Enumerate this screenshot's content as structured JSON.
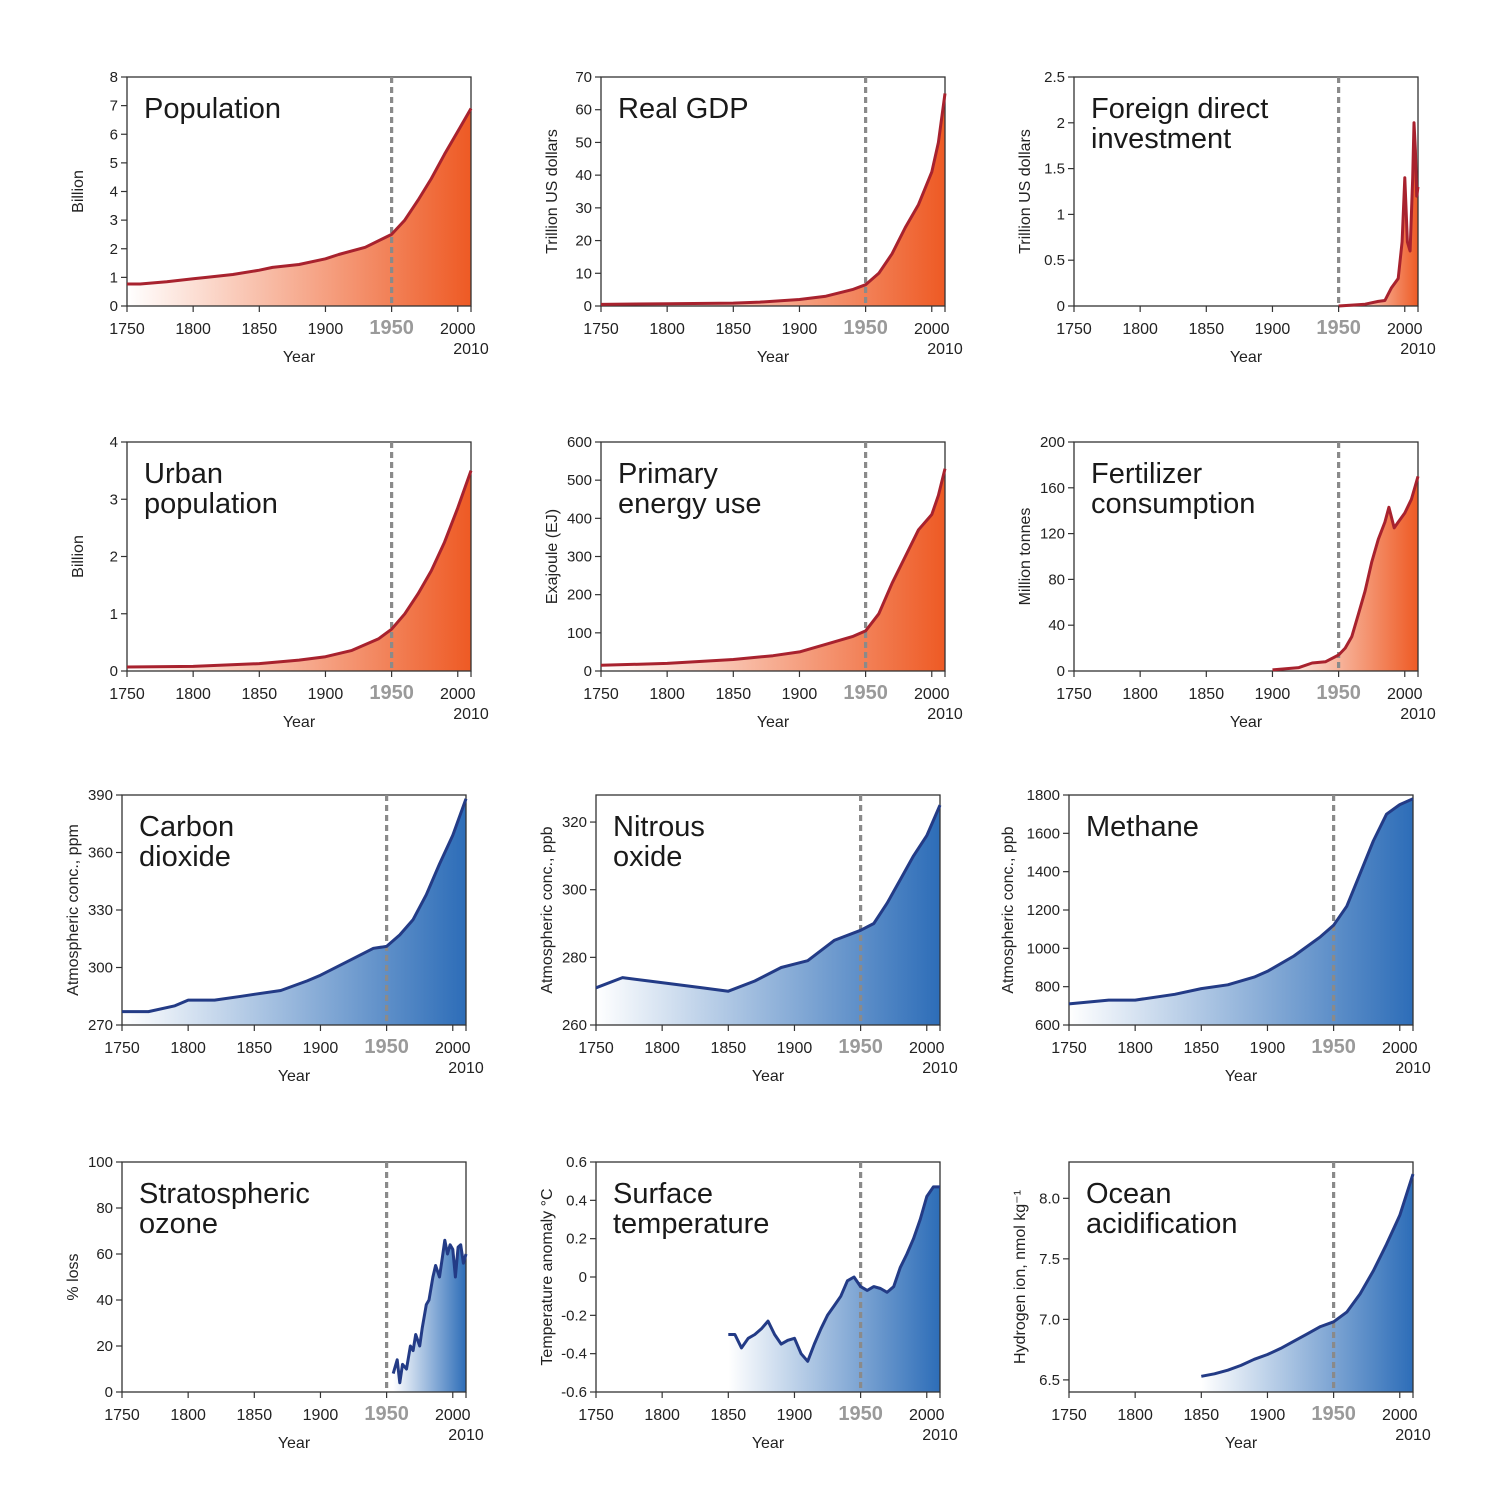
{
  "chart_data": [
    {
      "type": "area",
      "id": "population",
      "theme": "orange",
      "title_lines": [
        "Population"
      ],
      "ylabel": "Billion",
      "xlabel": "Year",
      "xlim": [
        1750,
        2010
      ],
      "ylim": [
        0,
        8
      ],
      "yticks": [
        "0",
        "1",
        "2",
        "3",
        "4",
        "5",
        "6",
        "7",
        "8"
      ],
      "xticks": [
        "1750",
        "1800",
        "1850",
        "1900",
        "1950",
        "2000"
      ],
      "x_end_label": "2010",
      "highlight_year": "1950",
      "x": [
        1750,
        1760,
        1780,
        1800,
        1810,
        1830,
        1850,
        1860,
        1880,
        1900,
        1910,
        1930,
        1950,
        1960,
        1970,
        1980,
        1990,
        2000,
        2010
      ],
      "y": [
        0.77,
        0.77,
        0.85,
        0.95,
        1.0,
        1.1,
        1.25,
        1.35,
        1.45,
        1.65,
        1.8,
        2.05,
        2.5,
        3.0,
        3.7,
        4.45,
        5.3,
        6.1,
        6.9
      ]
    },
    {
      "type": "area",
      "id": "real-gdp",
      "theme": "orange",
      "title_lines": [
        "Real GDP"
      ],
      "ylabel": "Trillion US dollars",
      "xlabel": "Year",
      "xlim": [
        1750,
        2010
      ],
      "ylim": [
        0,
        70
      ],
      "yticks": [
        "0",
        "10",
        "20",
        "30",
        "40",
        "50",
        "60",
        "70"
      ],
      "xticks": [
        "1750",
        "1800",
        "1850",
        "1900",
        "1950",
        "2000"
      ],
      "x_end_label": "2010",
      "highlight_year": "1950",
      "x": [
        1750,
        1800,
        1850,
        1870,
        1900,
        1920,
        1940,
        1950,
        1960,
        1970,
        1980,
        1990,
        2000,
        2005,
        2010
      ],
      "y": [
        0.5,
        0.7,
        0.9,
        1.2,
        2.0,
        3.0,
        5.0,
        6.5,
        10,
        16,
        24,
        31,
        41,
        50,
        65
      ]
    },
    {
      "type": "area",
      "id": "foreign-direct-investment",
      "theme": "orange",
      "title_lines": [
        "Foreign direct",
        "investment"
      ],
      "ylabel": "Trillion US dollars",
      "xlabel": "Year",
      "xlim": [
        1750,
        2010
      ],
      "ylim": [
        0,
        2.5
      ],
      "yticks": [
        "0",
        "0.5",
        "1",
        "1.5",
        "2",
        "2.5"
      ],
      "xticks": [
        "1750",
        "1800",
        "1850",
        "1900",
        "1950",
        "2000"
      ],
      "x_end_label": "2010",
      "highlight_year": "1950",
      "x": [
        1950,
        1960,
        1970,
        1980,
        1985,
        1990,
        1995,
        1998,
        2000,
        2002,
        2004,
        2006,
        2007,
        2008,
        2009,
        2010
      ],
      "y": [
        0.0,
        0.01,
        0.02,
        0.05,
        0.06,
        0.2,
        0.3,
        0.7,
        1.4,
        0.7,
        0.6,
        1.4,
        2.0,
        1.7,
        1.2,
        1.3
      ]
    },
    {
      "type": "area",
      "id": "urban-population",
      "theme": "orange",
      "title_lines": [
        "Urban",
        "population"
      ],
      "ylabel": "Billion",
      "xlabel": "Year",
      "xlim": [
        1750,
        2010
      ],
      "ylim": [
        0,
        4
      ],
      "yticks": [
        "0",
        "1",
        "2",
        "3",
        "4"
      ],
      "xticks": [
        "1750",
        "1800",
        "1850",
        "1900",
        "1950",
        "2000"
      ],
      "x_end_label": "2010",
      "highlight_year": "1950",
      "x": [
        1750,
        1800,
        1850,
        1880,
        1900,
        1920,
        1940,
        1950,
        1960,
        1970,
        1980,
        1990,
        2000,
        2010
      ],
      "y": [
        0.07,
        0.08,
        0.13,
        0.19,
        0.25,
        0.36,
        0.56,
        0.73,
        1.0,
        1.35,
        1.75,
        2.25,
        2.85,
        3.5
      ]
    },
    {
      "type": "area",
      "id": "primary-energy-use",
      "theme": "orange",
      "title_lines": [
        "Primary",
        "energy use"
      ],
      "ylabel": "Exajoule (EJ)",
      "xlabel": "Year",
      "xlim": [
        1750,
        2010
      ],
      "ylim": [
        0,
        600
      ],
      "yticks": [
        "0",
        "100",
        "200",
        "300",
        "400",
        "500",
        "600"
      ],
      "xticks": [
        "1750",
        "1800",
        "1850",
        "1900",
        "1950",
        "2000"
      ],
      "x_end_label": "2010",
      "highlight_year": "1950",
      "x": [
        1750,
        1800,
        1850,
        1880,
        1900,
        1920,
        1940,
        1950,
        1960,
        1970,
        1980,
        1990,
        2000,
        2005,
        2010
      ],
      "y": [
        15,
        20,
        30,
        40,
        50,
        70,
        90,
        105,
        150,
        230,
        300,
        370,
        410,
        460,
        530
      ]
    },
    {
      "type": "area",
      "id": "fertilizer-consumption",
      "theme": "orange",
      "title_lines": [
        "Fertilizer",
        "consumption"
      ],
      "ylabel": "Million tonnes",
      "xlabel": "Year",
      "xlim": [
        1750,
        2010
      ],
      "ylim": [
        0,
        200
      ],
      "yticks": [
        "0",
        "40",
        "80",
        "120",
        "160",
        "200"
      ],
      "xticks": [
        "1750",
        "1800",
        "1850",
        "1900",
        "1950",
        "2000"
      ],
      "x_end_label": "2010",
      "highlight_year": "1950",
      "x": [
        1900,
        1910,
        1920,
        1930,
        1940,
        1950,
        1955,
        1960,
        1965,
        1970,
        1975,
        1980,
        1985,
        1988,
        1992,
        1995,
        2000,
        2005,
        2008,
        2010
      ],
      "y": [
        1,
        2,
        3,
        7,
        8,
        14,
        20,
        30,
        50,
        70,
        95,
        115,
        130,
        143,
        125,
        130,
        138,
        150,
        162,
        170
      ]
    },
    {
      "type": "area",
      "id": "carbon-dioxide",
      "theme": "blue",
      "title_lines": [
        "Carbon",
        "dioxide"
      ],
      "ylabel": "Atmospheric conc., ppm",
      "xlabel": "Year",
      "xlim": [
        1750,
        2010
      ],
      "ylim": [
        270,
        390
      ],
      "yticks": [
        "270",
        "300",
        "330",
        "360",
        "390"
      ],
      "xticks": [
        "1750",
        "1800",
        "1850",
        "1900",
        "1950",
        "2000"
      ],
      "x_end_label": "2010",
      "highlight_year": "1950",
      "x": [
        1750,
        1770,
        1790,
        1800,
        1820,
        1840,
        1850,
        1870,
        1890,
        1900,
        1920,
        1940,
        1950,
        1960,
        1970,
        1980,
        1990,
        2000,
        2010
      ],
      "y": [
        277,
        277,
        280,
        283,
        283,
        285,
        286,
        288,
        293,
        296,
        303,
        310,
        311,
        317,
        325,
        338,
        354,
        369,
        388
      ]
    },
    {
      "type": "area",
      "id": "nitrous-oxide",
      "theme": "blue",
      "title_lines": [
        "Nitrous",
        "oxide"
      ],
      "ylabel": "Atmospheric conc., ppb",
      "xlabel": "Year",
      "xlim": [
        1750,
        2010
      ],
      "ylim": [
        260,
        328
      ],
      "yticks": [
        "260",
        "280",
        "300",
        "320"
      ],
      "xticks": [
        "1750",
        "1800",
        "1850",
        "1900",
        "1950",
        "2000"
      ],
      "x_end_label": "2010",
      "highlight_year": "1950",
      "x": [
        1750,
        1770,
        1790,
        1810,
        1830,
        1850,
        1870,
        1890,
        1900,
        1910,
        1930,
        1950,
        1960,
        1970,
        1980,
        1990,
        2000,
        2010
      ],
      "y": [
        271,
        274,
        273,
        272,
        271,
        270,
        273,
        277,
        278,
        279,
        285,
        288,
        290,
        296,
        303,
        310,
        316,
        325
      ]
    },
    {
      "type": "area",
      "id": "methane",
      "theme": "blue",
      "title_lines": [
        "Methane"
      ],
      "ylabel": "Atmospheric conc., ppb",
      "xlabel": "Year",
      "xlim": [
        1750,
        2010
      ],
      "ylim": [
        600,
        1800
      ],
      "yticks": [
        "600",
        "800",
        "1000",
        "1200",
        "1400",
        "1600",
        "1800"
      ],
      "xticks": [
        "1750",
        "1800",
        "1850",
        "1900",
        "1950",
        "2000"
      ],
      "x_end_label": "2010",
      "highlight_year": "1950",
      "x": [
        1750,
        1780,
        1800,
        1830,
        1850,
        1870,
        1890,
        1900,
        1920,
        1940,
        1950,
        1960,
        1970,
        1980,
        1990,
        2000,
        2010
      ],
      "y": [
        710,
        730,
        730,
        760,
        790,
        810,
        850,
        880,
        960,
        1060,
        1120,
        1220,
        1390,
        1560,
        1700,
        1750,
        1780
      ]
    },
    {
      "type": "area",
      "id": "stratospheric-ozone",
      "theme": "blue",
      "title_lines": [
        "Stratospheric",
        "ozone"
      ],
      "ylabel": "% loss",
      "xlabel": "Year",
      "xlim": [
        1750,
        2010
      ],
      "ylim": [
        0,
        100
      ],
      "yticks": [
        "0",
        "20",
        "40",
        "60",
        "80",
        "100"
      ],
      "xticks": [
        "1750",
        "1800",
        "1850",
        "1900",
        "1950",
        "2000"
      ],
      "x_end_label": "2010",
      "highlight_year": "1950",
      "x": [
        1955,
        1958,
        1960,
        1962,
        1965,
        1968,
        1970,
        1972,
        1975,
        1977,
        1980,
        1982,
        1985,
        1987,
        1990,
        1992,
        1994,
        1996,
        1998,
        2000,
        2002,
        2004,
        2006,
        2008,
        2010
      ],
      "y": [
        8,
        14,
        4,
        12,
        10,
        20,
        18,
        25,
        20,
        28,
        38,
        40,
        50,
        55,
        50,
        58,
        66,
        60,
        64,
        62,
        50,
        63,
        64,
        56,
        60
      ]
    },
    {
      "type": "area",
      "id": "surface-temperature",
      "theme": "blue",
      "title_lines": [
        "Surface",
        "temperature"
      ],
      "ylabel": "Temperature anomaly °C",
      "xlabel": "Year",
      "xlim": [
        1750,
        2010
      ],
      "ylim": [
        -0.6,
        0.6
      ],
      "yticks": [
        "-0.6",
        "-0.4",
        "-0.2",
        "0",
        "0.2",
        "0.4",
        "0.6"
      ],
      "xticks": [
        "1750",
        "1800",
        "1850",
        "1900",
        "1950",
        "2000"
      ],
      "x_end_label": "2010",
      "highlight_year": "1950",
      "x": [
        1850,
        1855,
        1860,
        1865,
        1870,
        1875,
        1880,
        1885,
        1890,
        1895,
        1900,
        1905,
        1910,
        1915,
        1920,
        1925,
        1930,
        1935,
        1940,
        1945,
        1950,
        1955,
        1960,
        1965,
        1970,
        1975,
        1980,
        1985,
        1990,
        1995,
        2000,
        2005,
        2010
      ],
      "y": [
        -0.3,
        -0.3,
        -0.37,
        -0.32,
        -0.3,
        -0.27,
        -0.23,
        -0.3,
        -0.35,
        -0.33,
        -0.32,
        -0.4,
        -0.44,
        -0.35,
        -0.27,
        -0.2,
        -0.15,
        -0.1,
        -0.02,
        0,
        -0.05,
        -0.07,
        -0.05,
        -0.06,
        -0.08,
        -0.05,
        0.05,
        0.12,
        0.2,
        0.3,
        0.42,
        0.47,
        0.47
      ]
    },
    {
      "type": "area",
      "id": "ocean-acidification",
      "theme": "blue",
      "title_lines": [
        "Ocean",
        "acidification"
      ],
      "ylabel": "Hydrogen ion, nmol kg⁻¹",
      "xlabel": "Year",
      "xlim": [
        1750,
        2010
      ],
      "ylim": [
        6.4,
        8.3
      ],
      "yticks": [
        "6.5",
        "7.0",
        "7.5",
        "8.0"
      ],
      "xticks": [
        "1750",
        "1800",
        "1850",
        "1900",
        "1950",
        "2000"
      ],
      "x_end_label": "2010",
      "highlight_year": "1950",
      "x": [
        1850,
        1860,
        1870,
        1880,
        1890,
        1900,
        1910,
        1920,
        1930,
        1940,
        1950,
        1960,
        1970,
        1980,
        1990,
        2000,
        2010
      ],
      "y": [
        6.53,
        6.55,
        6.58,
        6.62,
        6.67,
        6.71,
        6.76,
        6.82,
        6.88,
        6.94,
        6.98,
        7.06,
        7.21,
        7.4,
        7.62,
        7.86,
        8.2
      ]
    }
  ]
}
